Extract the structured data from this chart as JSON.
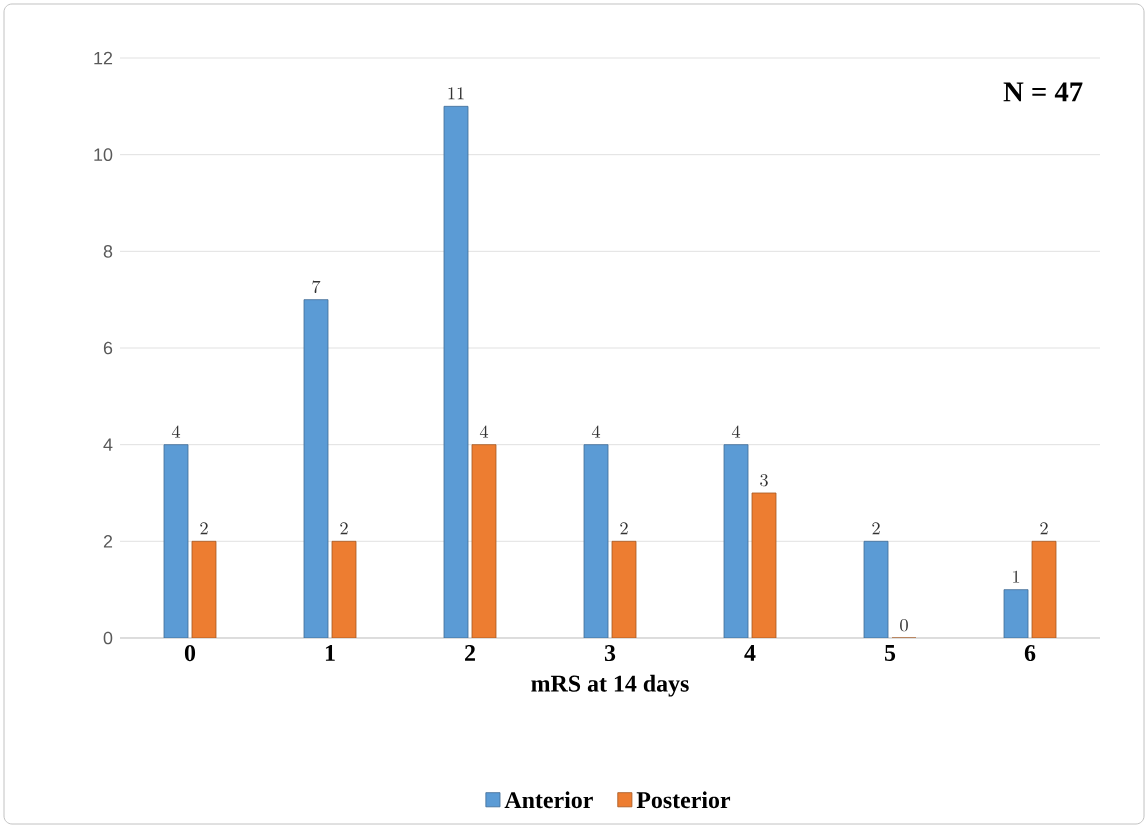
{
  "chart_data": {
    "type": "bar",
    "xlabel": "mRS at 14 days",
    "categories": [
      "0",
      "1",
      "2",
      "3",
      "4",
      "5",
      "6"
    ],
    "series": [
      {
        "name": "Anterior",
        "color": "#5b9bd5",
        "values": [
          4,
          7,
          11,
          4,
          4,
          2,
          1
        ]
      },
      {
        "name": "Posterior",
        "color": "#ed7d31",
        "values": [
          2,
          2,
          4,
          2,
          3,
          0,
          2
        ]
      }
    ],
    "ylim": [
      0,
      12
    ],
    "yticks": [
      0,
      2,
      4,
      6,
      8,
      10,
      12
    ],
    "grid": "y",
    "legend": "bottom",
    "data_labels": true,
    "annotations": [
      "N = 47"
    ]
  }
}
